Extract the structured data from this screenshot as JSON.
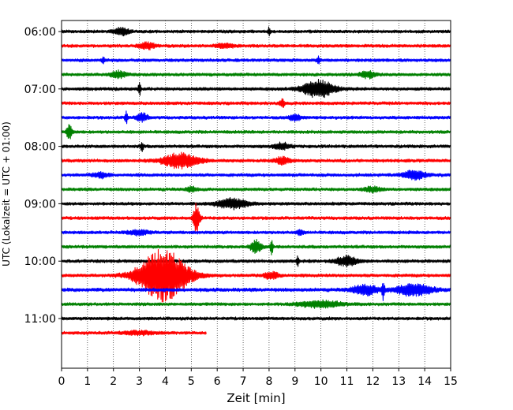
{
  "chart_data": {
    "type": "line",
    "title": "",
    "xlabel": "Zeit  [min]",
    "ylabel": "UTC (Lokalzeit = UTC + 01:00)",
    "xlim": [
      0,
      15
    ],
    "x_ticks": [
      "0",
      "1",
      "2",
      "3",
      "4",
      "5",
      "6",
      "7",
      "8",
      "9",
      "10",
      "11",
      "12",
      "13",
      "14",
      "15"
    ],
    "y_ticks": [
      "06:00",
      "07:00",
      "08:00",
      "09:00",
      "10:00",
      "11:00"
    ],
    "y_tick_rows": [
      0,
      4,
      8,
      12,
      16,
      20
    ],
    "grid_x": true,
    "row_interval_minutes": 15,
    "row_colors": [
      "#000000",
      "#ff0000",
      "#0000ff",
      "#008000"
    ],
    "series": [
      {
        "name": "06:00",
        "end_min": 15,
        "noise": 2.2,
        "events": [
          {
            "t": 2.3,
            "amp": 4,
            "width": 0.3
          },
          {
            "t": 8.0,
            "amp": 5,
            "width": 0.05
          }
        ]
      },
      {
        "name": "06:15",
        "end_min": 15,
        "noise": 2.2,
        "events": [
          {
            "t": 3.3,
            "amp": 4,
            "width": 0.3
          },
          {
            "t": 6.3,
            "amp": 3,
            "width": 0.3
          }
        ]
      },
      {
        "name": "06:30",
        "end_min": 15,
        "noise": 2.2,
        "events": [
          {
            "t": 1.6,
            "amp": 4,
            "width": 0.05
          },
          {
            "t": 9.9,
            "amp": 6,
            "width": 0.05
          }
        ]
      },
      {
        "name": "06:45",
        "end_min": 15,
        "noise": 2.2,
        "events": [
          {
            "t": 2.2,
            "amp": 4,
            "width": 0.3
          },
          {
            "t": 11.8,
            "amp": 4,
            "width": 0.3
          }
        ]
      },
      {
        "name": "07:00",
        "end_min": 15,
        "noise": 2.2,
        "events": [
          {
            "t": 3.0,
            "amp": 9,
            "width": 0.05
          },
          {
            "t": 9.9,
            "amp": 11,
            "width": 0.6
          }
        ]
      },
      {
        "name": "07:15",
        "end_min": 15,
        "noise": 2.2,
        "events": [
          {
            "t": 8.5,
            "amp": 5,
            "width": 0.1
          }
        ]
      },
      {
        "name": "07:30",
        "end_min": 15,
        "noise": 2.2,
        "events": [
          {
            "t": 2.5,
            "amp": 10,
            "width": 0.05
          },
          {
            "t": 3.1,
            "amp": 5,
            "width": 0.2
          },
          {
            "t": 9.0,
            "amp": 4,
            "width": 0.2
          }
        ]
      },
      {
        "name": "07:45",
        "end_min": 15,
        "noise": 2.2,
        "events": [
          {
            "t": 0.3,
            "amp": 10,
            "width": 0.1
          }
        ]
      },
      {
        "name": "08:00",
        "end_min": 15,
        "noise": 2.2,
        "events": [
          {
            "t": 3.1,
            "amp": 7,
            "width": 0.05
          },
          {
            "t": 8.5,
            "amp": 4,
            "width": 0.3
          }
        ]
      },
      {
        "name": "08:15",
        "end_min": 15,
        "noise": 2.2,
        "events": [
          {
            "t": 4.6,
            "amp": 9,
            "width": 0.7
          },
          {
            "t": 8.5,
            "amp": 4,
            "width": 0.3
          }
        ]
      },
      {
        "name": "08:30",
        "end_min": 15,
        "noise": 2.2,
        "events": [
          {
            "t": 1.5,
            "amp": 3,
            "width": 0.3
          },
          {
            "t": 13.6,
            "amp": 6,
            "width": 0.4
          }
        ]
      },
      {
        "name": "08:45",
        "end_min": 15,
        "noise": 2.2,
        "events": [
          {
            "t": 5.0,
            "amp": 3,
            "width": 0.2
          },
          {
            "t": 12.0,
            "amp": 3,
            "width": 0.3
          }
        ]
      },
      {
        "name": "09:00",
        "end_min": 15,
        "noise": 2.2,
        "events": [
          {
            "t": 6.6,
            "amp": 6,
            "width": 0.6
          }
        ]
      },
      {
        "name": "09:15",
        "end_min": 15,
        "noise": 2.2,
        "events": [
          {
            "t": 5.2,
            "amp": 18,
            "width": 0.12
          }
        ]
      },
      {
        "name": "09:30",
        "end_min": 15,
        "noise": 2.2,
        "events": [
          {
            "t": 3.0,
            "amp": 3,
            "width": 0.4
          },
          {
            "t": 9.2,
            "amp": 4,
            "width": 0.1
          }
        ]
      },
      {
        "name": "09:45",
        "end_min": 15,
        "noise": 2.2,
        "events": [
          {
            "t": 7.5,
            "amp": 8,
            "width": 0.2
          },
          {
            "t": 8.1,
            "amp": 11,
            "width": 0.05
          }
        ]
      },
      {
        "name": "10:00",
        "end_min": 15,
        "noise": 2.2,
        "events": [
          {
            "t": 9.1,
            "amp": 7,
            "width": 0.05
          },
          {
            "t": 11.0,
            "amp": 6,
            "width": 0.4
          }
        ]
      },
      {
        "name": "10:15",
        "end_min": 15,
        "noise": 2.2,
        "events": [
          {
            "t": 3.9,
            "amp": 33,
            "width": 0.9
          },
          {
            "t": 8.1,
            "amp": 4,
            "width": 0.3
          }
        ]
      },
      {
        "name": "10:30",
        "end_min": 15,
        "noise": 2.5,
        "events": [
          {
            "t": 11.7,
            "amp": 6,
            "width": 0.5
          },
          {
            "t": 12.4,
            "amp": 12,
            "width": 0.05
          },
          {
            "t": 13.6,
            "amp": 7,
            "width": 0.7
          }
        ]
      },
      {
        "name": "10:45",
        "end_min": 15,
        "noise": 2.2,
        "events": [
          {
            "t": 10.0,
            "amp": 4,
            "width": 0.8
          }
        ]
      },
      {
        "name": "11:00",
        "end_min": 15,
        "noise": 2.2,
        "events": []
      },
      {
        "name": "11:15",
        "end_min": 5.6,
        "noise": 2.2,
        "events": [
          {
            "t": 3.0,
            "amp": 2,
            "width": 0.6
          }
        ]
      }
    ]
  }
}
